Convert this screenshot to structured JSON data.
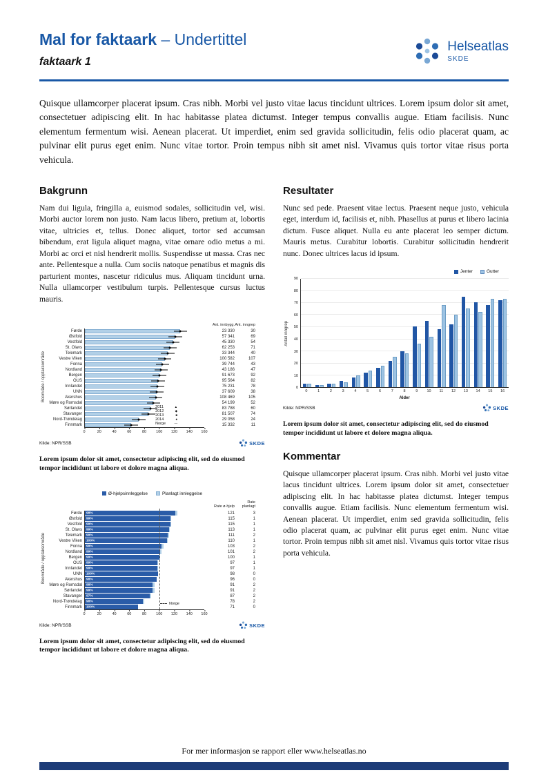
{
  "page": {
    "title_bold": "Mal for faktaark",
    "title_rest": " – Undertittel",
    "subtitle": "faktaark 1",
    "footer": "For mer informasjon se rapport eller www.helseatlas.no"
  },
  "logo": {
    "name": "Helseatlas",
    "org": "SKDE"
  },
  "colors": {
    "brand": "#1958a6",
    "navy": "#1d3c78",
    "bar_light": "#b2d0e7",
    "bar_dark": "#2a5ca8",
    "s1": "#2156a5",
    "s2": "#9dc3e3"
  },
  "intro": "Quisque ullamcorper placerat ipsum. Cras nibh. Morbi vel justo vitae lacus tincidunt ultrices. Lorem ipsum dolor sit amet, consectetuer adipiscing elit. In hac habitasse platea dictumst. Integer tempus convallis augue. Etiam facilisis. Nunc elementum fermentum wisi. Aenean placerat. Ut imperdiet, enim sed gravida sollicitudin, felis odio placerat quam, ac pulvinar elit purus eget enim. Nunc vitae tortor. Proin tempus nibh sit amet nisl. Vivamus quis tortor vitae risus porta vehicula.",
  "sections": {
    "bakgrunn": {
      "heading": "Bakgrunn",
      "body": "Nam dui ligula, fringilla a, euismod sodales, sollicitudin vel, wisi. Morbi auctor lorem non justo. Nam lacus libero, pretium at, lobortis vitae, ultricies et, tellus. Donec aliquet, tortor sed accumsan bibendum, erat ligula aliquet magna, vitae ornare odio metus a mi. Morbi ac orci et nisl hendrerit mollis. Suspendisse ut massa. Cras nec ante. Pellentesque a nulla. Cum sociis natoque penatibus et magnis dis parturient montes, nascetur ridiculus mus. Aliquam tincidunt urna. Nulla ullamcorper vestibulum turpis. Pellentesque cursus luctus mauris."
    },
    "resultater": {
      "heading": "Resultater",
      "body": "Nunc sed pede. Praesent vitae lectus. Praesent neque justo, vehicula eget, interdum id, facilisis et, nibh. Phasellus at purus et libero lacinia dictum. Fusce aliquet. Nulla eu ante placerat leo semper dictum. Mauris metus. Curabitur lobortis. Curabitur sollicitudin hendrerit nunc. Donec ultrices lacus id ipsum."
    },
    "kommentar": {
      "heading": "Kommentar",
      "body": "Quisque ullamcorper placerat ipsum. Cras nibh. Morbi vel justo vitae lacus tincidunt ultrices. Lorem ipsum dolor sit amet, consectetuer adipiscing elit. In hac habitasse platea dictumst. Integer tempus convallis augue. Etiam facilisis. Nunc elementum fermentum wisi. Aenean placerat. Ut imperdiet, enim sed gravida sollicitudin, felis odio placerat quam, ac pulvinar elit purus eget enim. Nunc vitae tortor. Proin tempus nibh sit amet nisl. Vivamus quis tortor vitae risus porta vehicula."
    }
  },
  "captions": {
    "chart1": "Lorem ipsum dolor sit amet, consectetur adipiscing elit, sed do eiusmod tempor incididunt ut labore et dolore magna aliqua.",
    "chart2": "Lorem ipsum dolor sit amet, consectetur adipiscing elit, sed do eiusmod tempor incididunt ut labore et dolore magna aliqua.",
    "chart3": "Lorem ipsum dolor sit amet, consectetur adipiscing elit, sed do eiusmod tempor incididunt ut labore et dolore magna aliqua."
  },
  "chart_data": [
    {
      "id": "rates-by-region",
      "type": "bar",
      "orientation": "horizontal",
      "ylabel": "Boområde / opptaksområde",
      "source": "Kilde: NPR/SSB",
      "xlim": [
        0,
        160
      ],
      "xticks": [
        0,
        20,
        40,
        60,
        80,
        100,
        120,
        140,
        160
      ],
      "col_headers": [
        "Ant. innbygg.",
        "Ant. inngrep"
      ],
      "legend_years": [
        "2011",
        "2012",
        "2013",
        "2014"
      ],
      "legend_markers": [
        "▲",
        "◆",
        "■",
        "●"
      ],
      "legend_norge": "Norge",
      "rows": [
        {
          "label": "Førde",
          "rate": 128,
          "innbygg": "23 330",
          "inngrep": "30"
        },
        {
          "label": "Østfold",
          "rate": 121,
          "innbygg": "57 341",
          "inngrep": "69"
        },
        {
          "label": "Vestfold",
          "rate": 118,
          "innbygg": "45 330",
          "inngrep": "54"
        },
        {
          "label": "St. Olavs",
          "rate": 114,
          "innbygg": "62 253",
          "inngrep": "71"
        },
        {
          "label": "Telemark",
          "rate": 111,
          "innbygg": "33 344",
          "inngrep": "40"
        },
        {
          "label": "Vestre Viken",
          "rate": 107,
          "innbygg": "100 582",
          "inngrep": "107"
        },
        {
          "label": "Fonna",
          "rate": 104,
          "innbygg": "39 744",
          "inngrep": "43"
        },
        {
          "label": "Nordland",
          "rate": 102,
          "innbygg": "43 186",
          "inngrep": "47"
        },
        {
          "label": "Bergen",
          "rate": 100,
          "innbygg": "91 673",
          "inngrep": "92"
        },
        {
          "label": "OUS",
          "rate": 98,
          "innbygg": "95 564",
          "inngrep": "82"
        },
        {
          "label": "Innlandet",
          "rate": 97,
          "innbygg": "75 231",
          "inngrep": "78"
        },
        {
          "label": "UNN",
          "rate": 96,
          "innbygg": "37 609",
          "inngrep": "38"
        },
        {
          "label": "Akershus",
          "rate": 95,
          "innbygg": "108 469",
          "inngrep": "105"
        },
        {
          "label": "Møre og Romsdal",
          "rate": 92,
          "innbygg": "54 199",
          "inngrep": "52"
        },
        {
          "label": "Sørlandet",
          "rate": 88,
          "innbygg": "83 788",
          "inngrep": "60"
        },
        {
          "label": "Stavanger",
          "rate": 85,
          "innbygg": "81 507",
          "inngrep": "74"
        },
        {
          "label": "Nord-Trøndelag",
          "rate": 72,
          "innbygg": "29 058",
          "inngrep": "24"
        },
        {
          "label": "Finnmark",
          "rate": 62,
          "innbygg": "15 332",
          "inngrep": "11"
        }
      ]
    },
    {
      "id": "age-gender",
      "type": "bar",
      "orientation": "vertical",
      "xlabel": "Alder",
      "ylabel": "Antall inngrep",
      "ylim": [
        0,
        90
      ],
      "yticks": [
        0,
        10,
        20,
        30,
        40,
        50,
        60,
        70,
        80,
        90
      ],
      "categories": [
        "0",
        "1",
        "2",
        "3",
        "4",
        "5",
        "6",
        "7",
        "8",
        "9",
        "10",
        "11",
        "12",
        "13",
        "14",
        "15",
        "16"
      ],
      "series": [
        {
          "name": "Jenter",
          "values": [
            3,
            2,
            3,
            5,
            8,
            12,
            16,
            22,
            30,
            50,
            55,
            48,
            52,
            75,
            70,
            68,
            72
          ]
        },
        {
          "name": "Gutter",
          "values": [
            3,
            2,
            3,
            4,
            10,
            14,
            18,
            25,
            28,
            36,
            42,
            68,
            60,
            65,
            62,
            73,
            73
          ]
        }
      ],
      "source": "Kilde: NPR/SSB",
      "legend_position": "top-right",
      "grid": true
    },
    {
      "id": "admission-type-by-region",
      "type": "bar",
      "orientation": "horizontal",
      "stacked": true,
      "ylabel": "Boområde / opptaksområde",
      "source": "Kilde: NPR/SSB",
      "xlim": [
        0,
        160
      ],
      "xticks": [
        0,
        20,
        40,
        60,
        80,
        100,
        120,
        140,
        160
      ],
      "series_legend": [
        "Ø-hjelpsinnleggelse",
        "Planlagt innleggelse"
      ],
      "col_headers": [
        "Rate ø-hjelp",
        "Rate planlagt"
      ],
      "norge_label": "Norge",
      "reference_line": 100,
      "rows": [
        {
          "label": "Førde",
          "pct": "98%",
          "rate1": 121,
          "rate2": 3
        },
        {
          "label": "Østfold",
          "pct": "99%",
          "rate1": 115,
          "rate2": 1
        },
        {
          "label": "Vestfold",
          "pct": "99%",
          "rate1": 115,
          "rate2": 1
        },
        {
          "label": "St. Olavs",
          "pct": "99%",
          "rate1": 113,
          "rate2": 1
        },
        {
          "label": "Telemark",
          "pct": "99%",
          "rate1": 111,
          "rate2": 2
        },
        {
          "label": "Vestre Viken",
          "pct": "100%",
          "rate1": 110,
          "rate2": 1
        },
        {
          "label": "Fonna",
          "pct": "99%",
          "rate1": 103,
          "rate2": 2
        },
        {
          "label": "Nordland",
          "pct": "99%",
          "rate1": 101,
          "rate2": 2
        },
        {
          "label": "Bergen",
          "pct": "99%",
          "rate1": 100,
          "rate2": 1
        },
        {
          "label": "OUS",
          "pct": "99%",
          "rate1": 97,
          "rate2": 1
        },
        {
          "label": "Innlandet",
          "pct": "99%",
          "rate1": 97,
          "rate2": 1
        },
        {
          "label": "UNN",
          "pct": "100%",
          "rate1": 98,
          "rate2": 0
        },
        {
          "label": "Akershus",
          "pct": "98%",
          "rate1": 96,
          "rate2": 0
        },
        {
          "label": "Møre og Romsdal",
          "pct": "98%",
          "rate1": 91,
          "rate2": 2
        },
        {
          "label": "Sørlandet",
          "pct": "99%",
          "rate1": 91,
          "rate2": 2
        },
        {
          "label": "Stavanger",
          "pct": "97%",
          "rate1": 87,
          "rate2": 2
        },
        {
          "label": "Nord-Trøndelag",
          "pct": "98%",
          "rate1": 78,
          "rate2": 2
        },
        {
          "label": "Finnmark",
          "pct": "100%",
          "rate1": 71,
          "rate2": 0
        }
      ]
    }
  ]
}
